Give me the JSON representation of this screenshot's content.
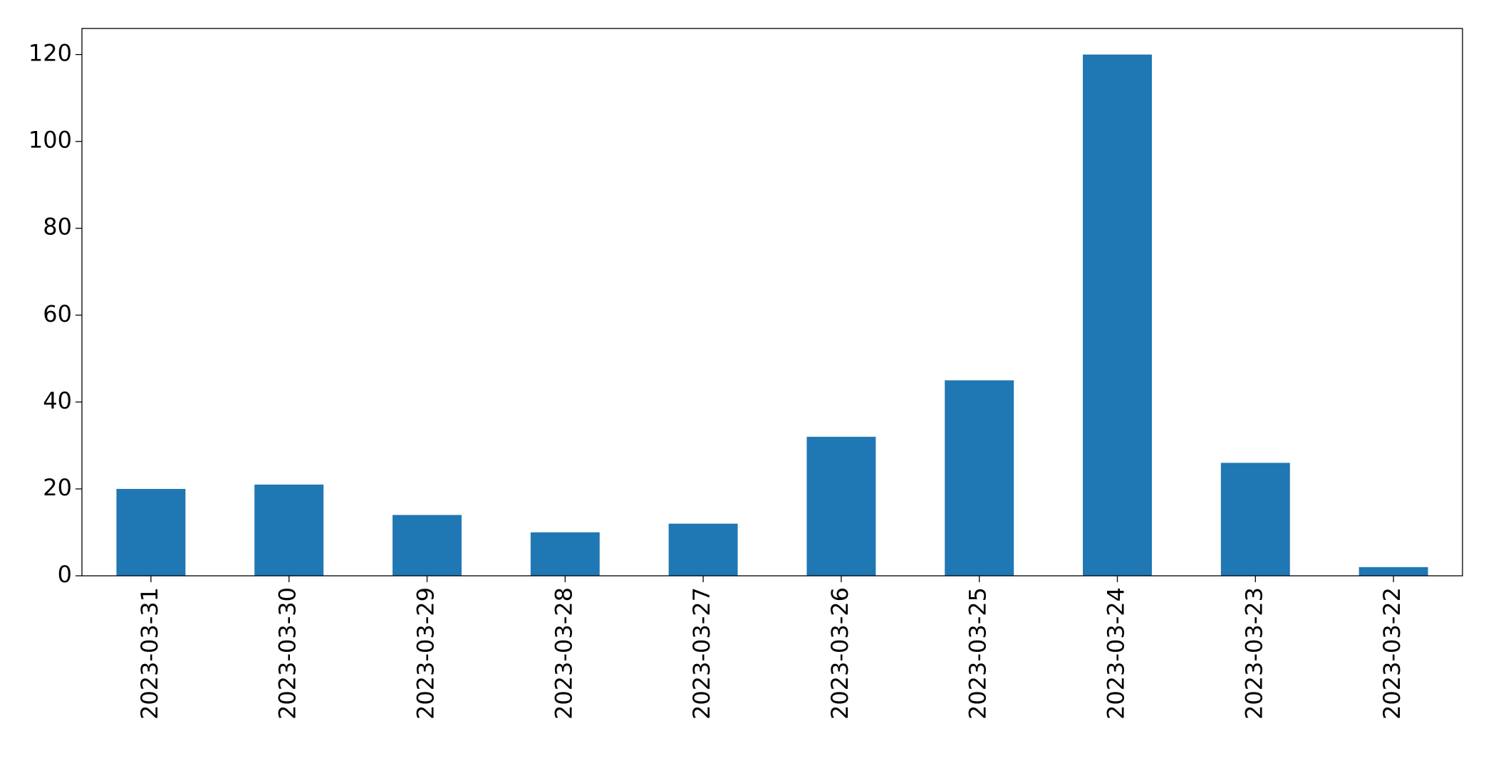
{
  "chart_data": {
    "type": "bar",
    "categories": [
      "2023-03-31",
      "2023-03-30",
      "2023-03-29",
      "2023-03-28",
      "2023-03-27",
      "2023-03-26",
      "2023-03-25",
      "2023-03-24",
      "2023-03-23",
      "2023-03-22"
    ],
    "values": [
      20,
      21,
      14,
      10,
      12,
      32,
      45,
      120,
      26,
      2
    ],
    "color": "#1f77b4",
    "ylim": [
      0,
      126
    ],
    "yticks": [
      0,
      20,
      40,
      60,
      80,
      100,
      120
    ],
    "grid": false
  }
}
